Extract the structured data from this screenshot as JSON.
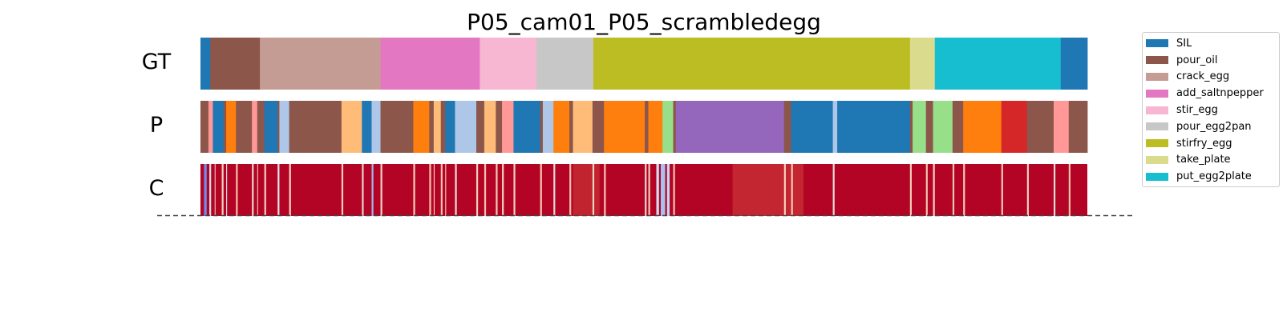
{
  "chart_data": {
    "type": "action-segmentation-timeline",
    "title": "P05_cam01_P05_scrambledegg",
    "rows": [
      {
        "label": "GT",
        "segments": [
          {
            "end": 0.011,
            "action": "SIL"
          },
          {
            "end": 0.067,
            "action": "pour_oil"
          },
          {
            "end": 0.203,
            "action": "crack_egg"
          },
          {
            "end": 0.315,
            "action": "add_saltnpepper"
          },
          {
            "end": 0.379,
            "action": "stir_egg"
          },
          {
            "end": 0.443,
            "action": "pour_egg2pan"
          },
          {
            "end": 0.8,
            "action": "stirfry_egg"
          },
          {
            "end": 0.828,
            "action": "take_plate"
          },
          {
            "end": 0.97,
            "action": "put_egg2plate"
          },
          {
            "end": 1.0,
            "action": "SIL"
          }
        ]
      },
      {
        "label": "P",
        "segments": [
          {
            "end": 0.009,
            "color": "#8c564b"
          },
          {
            "end": 0.014,
            "color": "#ff9896"
          },
          {
            "end": 0.026,
            "color": "#1f77b4"
          },
          {
            "end": 0.029,
            "color": "#8c564b"
          },
          {
            "end": 0.04,
            "color": "#ff7f0e"
          },
          {
            "end": 0.058,
            "color": "#8c564b"
          },
          {
            "end": 0.064,
            "color": "#ff9896"
          },
          {
            "end": 0.072,
            "color": "#8c564b"
          },
          {
            "end": 0.087,
            "color": "#1f77b4"
          },
          {
            "end": 0.089,
            "color": "#8c564b"
          },
          {
            "end": 0.1,
            "color": "#aec7e8"
          },
          {
            "end": 0.159,
            "color": "#8c564b"
          },
          {
            "end": 0.182,
            "color": "#ffbb78"
          },
          {
            "end": 0.193,
            "color": "#1f77b4"
          },
          {
            "end": 0.203,
            "color": "#aec7e8"
          },
          {
            "end": 0.24,
            "color": "#8c564b"
          },
          {
            "end": 0.258,
            "color": "#ff7f0e"
          },
          {
            "end": 0.263,
            "color": "#8c564b"
          },
          {
            "end": 0.271,
            "color": "#ffbb78"
          },
          {
            "end": 0.276,
            "color": "#8c564b"
          },
          {
            "end": 0.287,
            "color": "#1f77b4"
          },
          {
            "end": 0.311,
            "color": "#aec7e8"
          },
          {
            "end": 0.32,
            "color": "#8c564b"
          },
          {
            "end": 0.333,
            "color": "#ffbb78"
          },
          {
            "end": 0.34,
            "color": "#8c564b"
          },
          {
            "end": 0.353,
            "color": "#ff9896"
          },
          {
            "end": 0.383,
            "color": "#1f77b4"
          },
          {
            "end": 0.386,
            "color": "#8c564b"
          },
          {
            "end": 0.398,
            "color": "#aec7e8"
          },
          {
            "end": 0.416,
            "color": "#ff7f0e"
          },
          {
            "end": 0.42,
            "color": "#8c564b"
          },
          {
            "end": 0.442,
            "color": "#ffbb78"
          },
          {
            "end": 0.455,
            "color": "#8c564b"
          },
          {
            "end": 0.501,
            "color": "#ff7f0e"
          },
          {
            "end": 0.505,
            "color": "#8c564b"
          },
          {
            "end": 0.521,
            "color": "#ff7f0e"
          },
          {
            "end": 0.533,
            "color": "#98df8a"
          },
          {
            "end": 0.536,
            "color": "#8c564b"
          },
          {
            "end": 0.658,
            "color": "#9467bd"
          },
          {
            "end": 0.666,
            "color": "#8c564b"
          },
          {
            "end": 0.713,
            "color": "#1f77b4"
          },
          {
            "end": 0.718,
            "color": "#aec7e8"
          },
          {
            "end": 0.8,
            "color": "#1f77b4"
          },
          {
            "end": 0.803,
            "color": "#8c564b"
          },
          {
            "end": 0.818,
            "color": "#98df8a"
          },
          {
            "end": 0.826,
            "color": "#8c564b"
          },
          {
            "end": 0.848,
            "color": "#98df8a"
          },
          {
            "end": 0.86,
            "color": "#8c564b"
          },
          {
            "end": 0.903,
            "color": "#ff7f0e"
          },
          {
            "end": 0.932,
            "color": "#d62728"
          },
          {
            "end": 0.962,
            "color": "#8c564b"
          },
          {
            "end": 0.979,
            "color": "#ff9896"
          },
          {
            "end": 1.0,
            "color": "#8c564b"
          }
        ]
      },
      {
        "label": "C",
        "base_color": "#b40426",
        "stripes": [
          {
            "pos": 0.004,
            "width": 0.003,
            "color": "#6b8fe8"
          },
          {
            "pos": 0.01,
            "width": 0.002,
            "color": "#dcdde6"
          },
          {
            "pos": 0.016,
            "width": 0.001,
            "color": "#f2c8b4"
          },
          {
            "pos": 0.024,
            "width": 0.002,
            "color": "#f4d4c2"
          },
          {
            "pos": 0.029,
            "width": 0.001,
            "color": "#e4eaf4"
          },
          {
            "pos": 0.04,
            "width": 0.002,
            "color": "#f2c0a8"
          },
          {
            "pos": 0.058,
            "width": 0.002,
            "color": "#e9d5cb"
          },
          {
            "pos": 0.064,
            "width": 0.001,
            "color": "#f0c4ae"
          },
          {
            "pos": 0.072,
            "width": 0.002,
            "color": "#f4cfbc"
          },
          {
            "pos": 0.087,
            "width": 0.002,
            "color": "#e3e6ee"
          },
          {
            "pos": 0.1,
            "width": 0.002,
            "color": "#f7d6c4"
          },
          {
            "pos": 0.159,
            "width": 0.002,
            "color": "#f3cdb8"
          },
          {
            "pos": 0.182,
            "width": 0.002,
            "color": "#f4c4a6"
          },
          {
            "pos": 0.183,
            "width": 0.001,
            "color": "#d0dcf2"
          },
          {
            "pos": 0.193,
            "width": 0.002,
            "color": "#9db8ec"
          },
          {
            "pos": 0.203,
            "width": 0.002,
            "color": "#ecd2c4"
          },
          {
            "pos": 0.24,
            "width": 0.002,
            "color": "#f4cdb8"
          },
          {
            "pos": 0.258,
            "width": 0.002,
            "color": "#f2c2aa"
          },
          {
            "pos": 0.263,
            "width": 0.001,
            "color": "#f7d4c0"
          },
          {
            "pos": 0.271,
            "width": 0.002,
            "color": "#f0c0a8"
          },
          {
            "pos": 0.276,
            "width": 0.001,
            "color": "#f4cdb8"
          },
          {
            "pos": 0.287,
            "width": 0.002,
            "color": "#eaded6"
          },
          {
            "pos": 0.311,
            "width": 0.002,
            "color": "#f4d0bc"
          },
          {
            "pos": 0.32,
            "width": 0.002,
            "color": "#f2c4ac"
          },
          {
            "pos": 0.333,
            "width": 0.002,
            "color": "#f3cbb4"
          },
          {
            "pos": 0.34,
            "width": 0.002,
            "color": "#f5d0bc"
          },
          {
            "pos": 0.353,
            "width": 0.002,
            "color": "#ecd0c2"
          },
          {
            "pos": 0.383,
            "width": 0.002,
            "color": "#f4cbb4"
          },
          {
            "pos": 0.398,
            "width": 0.002,
            "color": "#e4d8d2"
          },
          {
            "pos": 0.416,
            "width": 0.002,
            "color": "#f2c4ac"
          },
          {
            "pos": 0.442,
            "width": 0.002,
            "color": "#f4d2c0"
          },
          {
            "pos": 0.455,
            "width": 0.002,
            "color": "#f0c6b0"
          },
          {
            "pos": 0.501,
            "width": 0.002,
            "color": "#e8d4ca"
          },
          {
            "pos": 0.505,
            "width": 0.002,
            "color": "#f4cbb6"
          },
          {
            "pos": 0.514,
            "width": 0.003,
            "color": "#cfdbf1"
          },
          {
            "pos": 0.519,
            "width": 0.005,
            "color": "#a7c2ef"
          },
          {
            "pos": 0.526,
            "width": 0.003,
            "color": "#c4d6f2"
          },
          {
            "pos": 0.533,
            "width": 0.002,
            "color": "#f0c4ae"
          },
          {
            "pos": 0.658,
            "width": 0.002,
            "color": "#f4cfbc"
          },
          {
            "pos": 0.666,
            "width": 0.002,
            "color": "#f2c6b0"
          },
          {
            "pos": 0.713,
            "width": 0.002,
            "color": "#e6dcd6"
          },
          {
            "pos": 0.8,
            "width": 0.002,
            "color": "#f4cdb8"
          },
          {
            "pos": 0.818,
            "width": 0.002,
            "color": "#f2c4ac"
          },
          {
            "pos": 0.826,
            "width": 0.002,
            "color": "#f4d0bc"
          },
          {
            "pos": 0.848,
            "width": 0.002,
            "color": "#f0c4ae"
          },
          {
            "pos": 0.86,
            "width": 0.002,
            "color": "#f4ccb6"
          },
          {
            "pos": 0.903,
            "width": 0.002,
            "color": "#f2c6b0"
          },
          {
            "pos": 0.932,
            "width": 0.002,
            "color": "#f4d0bc"
          },
          {
            "pos": 0.962,
            "width": 0.002,
            "color": "#e4dad4"
          },
          {
            "pos": 0.979,
            "width": 0.002,
            "color": "#f2c4ac"
          }
        ],
        "soft_bands": [
          {
            "from": 0.6,
            "to": 0.68,
            "color": "#d04438"
          },
          {
            "from": 0.42,
            "to": 0.45,
            "color": "#cc3e36"
          }
        ]
      }
    ],
    "legend": {
      "placement": "right",
      "entries": [
        {
          "label": "SIL",
          "color": "#1f77b4"
        },
        {
          "label": "pour_oil",
          "color": "#8c564b"
        },
        {
          "label": "crack_egg",
          "color": "#c49c94"
        },
        {
          "label": "add_saltnpepper",
          "color": "#e377c2"
        },
        {
          "label": "stir_egg",
          "color": "#f7b6d2"
        },
        {
          "label": "pour_egg2pan",
          "color": "#c7c7c7"
        },
        {
          "label": "stirfry_egg",
          "color": "#bcbd22"
        },
        {
          "label": "take_plate",
          "color": "#dbdb8d"
        },
        {
          "label": "put_egg2plate",
          "color": "#17becf"
        }
      ]
    },
    "grid": false
  }
}
